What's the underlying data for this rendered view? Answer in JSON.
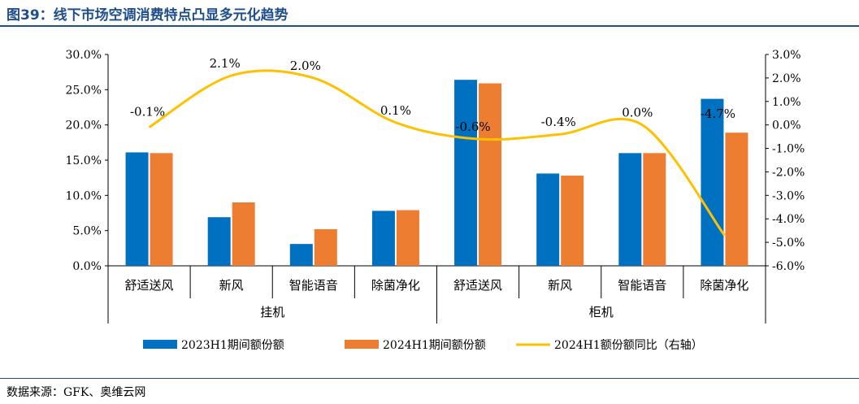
{
  "header": {
    "title": "图39：线下市场空调消费特点凸显多元化趋势"
  },
  "footer": {
    "source": "数据来源：GFK、奥维云网"
  },
  "colors": {
    "title": "#1f4e8c",
    "series_2023": "#0070c0",
    "series_2024": "#ed7d31",
    "line": "#ffc000"
  },
  "chart_data": {
    "type": "bar",
    "groups": [
      {
        "label": "挂机",
        "categories": [
          "舒适送风",
          "新风",
          "智能语音",
          "除菌净化"
        ]
      },
      {
        "label": "柜机",
        "categories": [
          "舒适送风",
          "新风",
          "智能语音",
          "除菌净化"
        ]
      }
    ],
    "categories": [
      "舒适送风",
      "新风",
      "智能语音",
      "除菌净化",
      "舒适送风",
      "新风",
      "智能语音",
      "除菌净化"
    ],
    "series": [
      {
        "name": "2023H1期间额份额",
        "type": "bar",
        "axis": "left",
        "values": [
          16.1,
          6.9,
          3.1,
          7.8,
          26.4,
          13.1,
          16.0,
          23.7
        ]
      },
      {
        "name": "2024H1期间额份额",
        "type": "bar",
        "axis": "left",
        "values": [
          16.0,
          9.0,
          5.2,
          7.9,
          25.9,
          12.8,
          16.0,
          18.9
        ]
      },
      {
        "name": "2024H1额份额同比（右轴）",
        "type": "line",
        "axis": "right",
        "values": [
          -0.1,
          2.1,
          2.0,
          0.1,
          -0.6,
          -0.4,
          0.0,
          -4.7
        ]
      }
    ],
    "data_labels": [
      "-0.1%",
      "2.1%",
      "2.0%",
      "0.1%",
      "-0.6%",
      "-0.4%",
      "0.0%",
      "-4.7%"
    ],
    "left_axis": {
      "min": 0,
      "max": 30,
      "step": 5,
      "ticks": [
        "0.0%",
        "5.0%",
        "10.0%",
        "15.0%",
        "20.0%",
        "25.0%",
        "30.0%"
      ]
    },
    "right_axis": {
      "min": -6,
      "max": 3,
      "step": 1,
      "ticks": [
        "-6.0%",
        "-5.0%",
        "-4.0%",
        "-3.0%",
        "-2.0%",
        "-1.0%",
        "0.0%",
        "1.0%",
        "2.0%",
        "3.0%"
      ]
    },
    "legend_position": "bottom",
    "grid": false
  }
}
